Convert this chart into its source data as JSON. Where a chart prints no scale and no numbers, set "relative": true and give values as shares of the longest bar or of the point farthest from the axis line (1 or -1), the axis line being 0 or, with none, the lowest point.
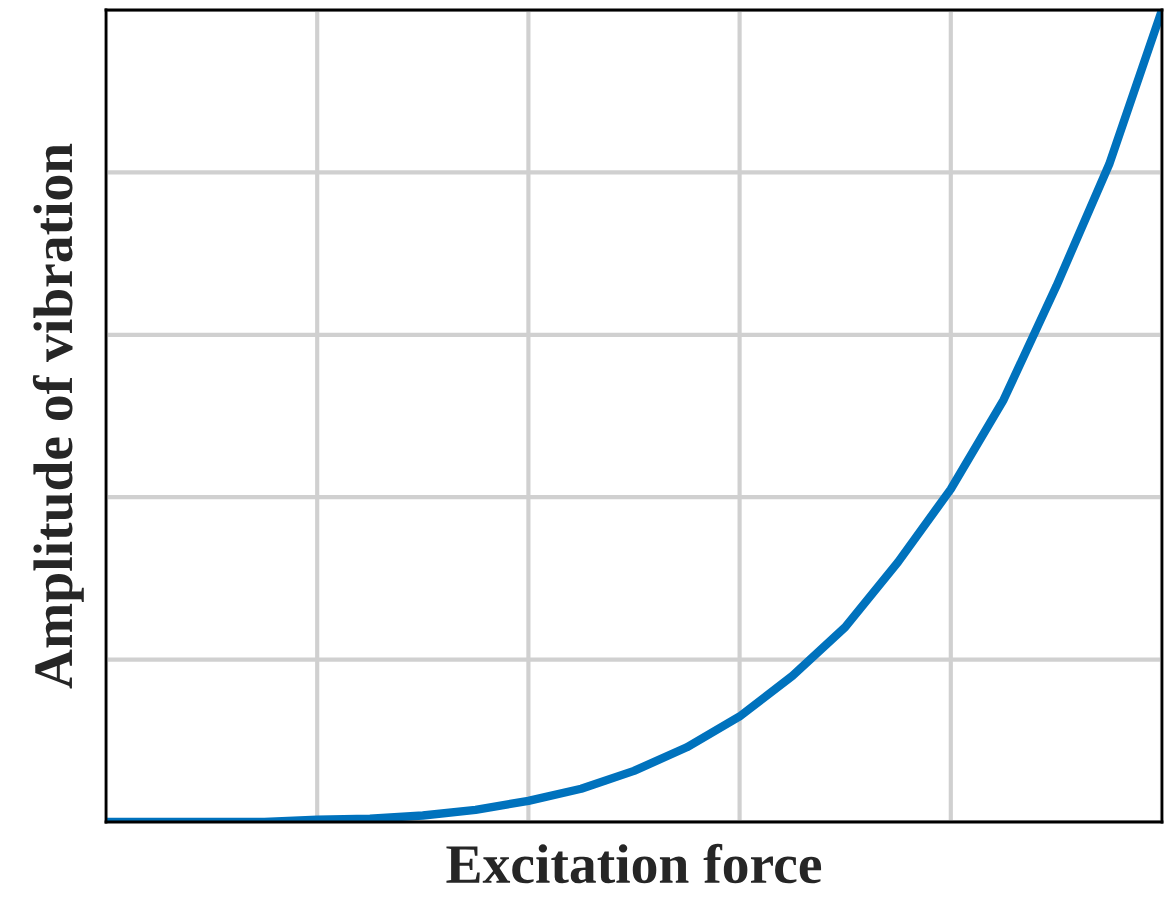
{
  "chart_data": {
    "type": "line",
    "xlabel": "Excitation force",
    "ylabel": "Amplitude of vibration",
    "relative": true,
    "categories": [
      null,
      null,
      null,
      null,
      null,
      null,
      null,
      null,
      null,
      null,
      null,
      null,
      null,
      null,
      null,
      null,
      null,
      null,
      null,
      null,
      null
    ],
    "series": [
      {
        "color": "#0072bd",
        "values": [
          0,
          0,
          0,
          0,
          0.003,
          0.004,
          0.008,
          0.015,
          0.026,
          0.041,
          0.063,
          0.092,
          0.13,
          0.18,
          0.24,
          0.32,
          0.41,
          0.52,
          0.66,
          0.81,
          1
        ]
      }
    ],
    "grid": true,
    "tick_labels": false,
    "legend": false,
    "marker": "none",
    "line_style": "solid"
  }
}
